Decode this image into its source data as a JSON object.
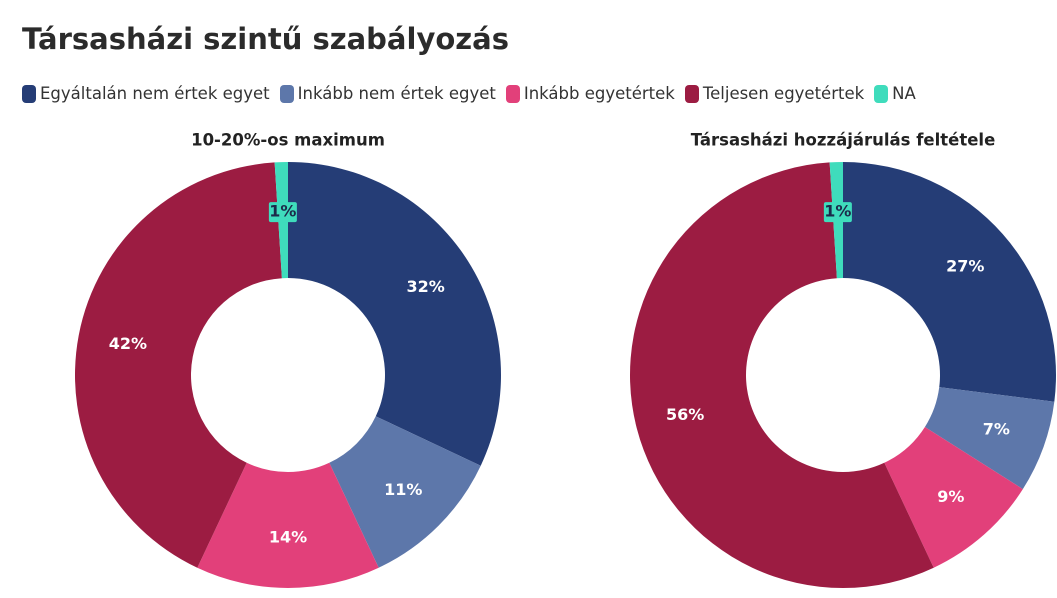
{
  "title": "Társasházi szintű szabályozás",
  "chart_data": [
    {
      "type": "donut",
      "title": "10-20%-os maximum",
      "categories": [
        "Egyáltalán nem értek egyet",
        "Inkább nem értek egyet",
        "Inkább egyetértek",
        "Teljesen egyetértek",
        "NA"
      ],
      "colors": [
        "#253d76",
        "#5d77aa",
        "#e2407a",
        "#9c1c42",
        "#3fdcbc"
      ],
      "values": [
        32,
        11,
        14,
        42,
        1
      ],
      "value_labels": [
        "32%",
        "11%",
        "14%",
        "42%",
        "1%"
      ]
    },
    {
      "type": "donut",
      "title": "Társasházi hozzájárulás feltétele",
      "categories": [
        "Egyáltalán nem értek egyet",
        "Inkább nem értek egyet",
        "Inkább egyetértek",
        "Teljesen egyetértek",
        "NA"
      ],
      "colors": [
        "#253d76",
        "#5d77aa",
        "#e2407a",
        "#9c1c42",
        "#3fdcbc"
      ],
      "values": [
        27,
        7,
        9,
        56,
        1
      ],
      "value_labels": [
        "27%",
        "7%",
        "9%",
        "56%",
        "1%"
      ]
    }
  ]
}
